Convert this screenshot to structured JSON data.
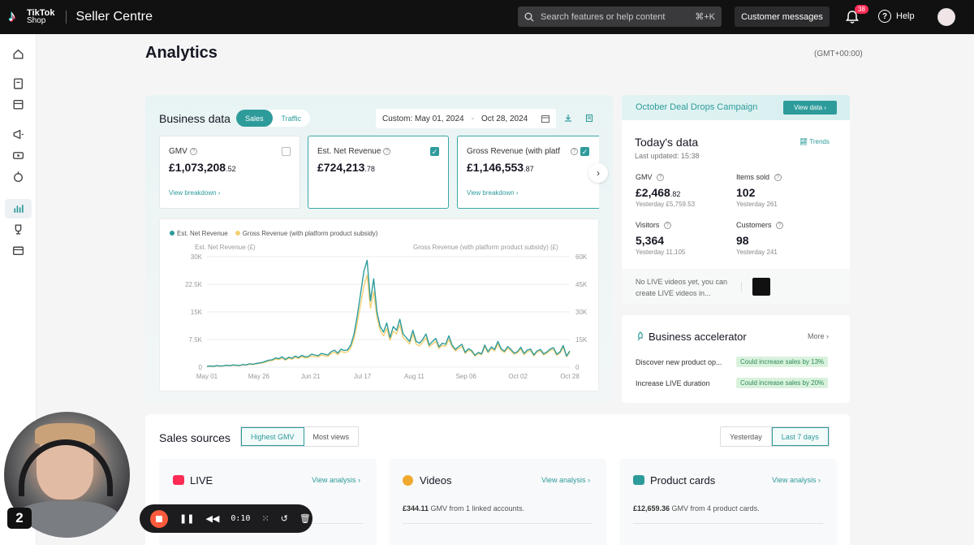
{
  "topbar": {
    "logo_line1": "TikTok",
    "logo_line2": "Shop",
    "brand": "Seller Centre",
    "search_placeholder": "Search features or help content",
    "search_shortcut": "⌘+K",
    "customer_messages": "Customer messages",
    "notification_count": "38",
    "help": "Help"
  },
  "page": {
    "title": "Analytics",
    "timezone": "(GMT+00:00)"
  },
  "business": {
    "title": "Business data",
    "tabs": [
      "Sales",
      "Traffic"
    ],
    "active_tab": "Sales",
    "date_label": "Custom:",
    "date_start": "May 01, 2024",
    "date_sep": "-",
    "date_end": "Oct 28, 2024",
    "metrics": [
      {
        "label": "GMV",
        "main": "£1,073,208",
        "dec": ".52",
        "link": "View breakdown ›",
        "checked": false
      },
      {
        "label": "Est. Net Revenue",
        "main": "£724,213",
        "dec": ".78",
        "link": "",
        "checked": true
      },
      {
        "label": "Gross Revenue (with platf",
        "main": "£1,146,553",
        "dec": ".87",
        "link": "View breakdown ›",
        "checked": true
      }
    ]
  },
  "chart_data": {
    "type": "line",
    "legend": [
      "Est. Net Revenue",
      "Gross Revenue (with platform product subsidy)"
    ],
    "y_left_label": "Est. Net Revenue (£)",
    "y_right_label": "Gross Revenue (with platform product subsidy) (£)",
    "y_left_ticks": [
      "30K",
      "22.5K",
      "15K",
      "7.5K",
      "0"
    ],
    "y_right_ticks": [
      "60K",
      "45K",
      "30K",
      "15K",
      "0"
    ],
    "ylim_left": [
      0,
      30000
    ],
    "ylim_right": [
      0,
      60000
    ],
    "x_ticks": [
      "May 01",
      "May 26",
      "Jun 21",
      "Jul 17",
      "Aug 11",
      "Sep 06",
      "Oct 02",
      "Oct 28"
    ],
    "colors": {
      "net": "#2e9b9b",
      "gross": "#f3d074"
    },
    "series": [
      {
        "name": "Est. Net Revenue",
        "values": [
          200,
          300,
          250,
          400,
          300,
          350,
          500,
          400,
          600,
          500,
          450,
          700,
          600,
          900,
          800,
          1000,
          1100,
          1300,
          1600,
          1900,
          2000,
          2500,
          2300,
          2800,
          2100,
          2700,
          2400,
          3000,
          2600,
          3200,
          2800,
          2900,
          3500,
          3300,
          3100,
          3700,
          3500,
          3300,
          4200,
          4600,
          3800,
          4900,
          4500,
          4700,
          6000,
          9000,
          14000,
          20000,
          26000,
          29000,
          18000,
          24000,
          15000,
          11000,
          9500,
          12000,
          8000,
          11000,
          10000,
          13000,
          9000,
          8000,
          7000,
          10000,
          7000,
          6500,
          7500,
          9000,
          6000,
          7000,
          7800,
          5500,
          6500,
          6200,
          8500,
          6000,
          4800,
          5600,
          6200,
          4000,
          5000,
          4500,
          3200,
          4000,
          3600,
          6000,
          4200,
          5500,
          4800,
          7000,
          5000,
          4300,
          5600,
          4800,
          3800,
          4200,
          5400,
          3700,
          4600,
          4900,
          3300,
          4400,
          4800,
          3600,
          4100,
          4900,
          5300,
          3500,
          4100,
          5900,
          3000,
          4400
        ]
      },
      {
        "name": "Gross Revenue (with platform product subsidy)",
        "values": [
          400,
          500,
          450,
          700,
          550,
          600,
          850,
          700,
          1000,
          900,
          800,
          1200,
          1000,
          1600,
          1400,
          1800,
          2000,
          2300,
          2800,
          3400,
          3600,
          4400,
          4100,
          5000,
          3800,
          4800,
          4300,
          5300,
          4600,
          5700,
          5000,
          5200,
          6100,
          5800,
          5500,
          6500,
          6200,
          5800,
          7400,
          8100,
          6700,
          8600,
          7900,
          8300,
          10500,
          15500,
          24000,
          34000,
          44000,
          50000,
          32000,
          41000,
          27000,
          20000,
          17000,
          21000,
          14500,
          19500,
          18000,
          23000,
          16000,
          14500,
          12500,
          18000,
          12500,
          11500,
          13500,
          16000,
          11000,
          12500,
          14000,
          10000,
          11800,
          11200,
          15000,
          11000,
          8800,
          10200,
          11200,
          7400,
          9200,
          8300,
          6000,
          7400,
          6700,
          11000,
          7800,
          10000,
          8800,
          12500,
          9200,
          8000,
          10200,
          8800,
          7000,
          7800,
          9800,
          6800,
          8400,
          9000,
          6100,
          8100,
          8800,
          6600,
          7600,
          9000,
          9600,
          6400,
          7600,
          10700,
          5600,
          8100
        ]
      }
    ]
  },
  "campaign": {
    "title": "October Deal Drops Campaign",
    "button": "View data ›"
  },
  "today": {
    "title": "Today's data",
    "updated": "Last updated: 15:38",
    "trends": "Trends",
    "items": [
      {
        "label": "GMV",
        "main": "£2,468",
        "dec": ".82",
        "sub": "Yesterday £5,759.53"
      },
      {
        "label": "Items sold",
        "main": "102",
        "dec": "",
        "sub": "Yesterday 261"
      },
      {
        "label": "Visitors",
        "main": "5,364",
        "dec": "",
        "sub": "Yesterday 11,105"
      },
      {
        "label": "Customers",
        "main": "98",
        "dec": "",
        "sub": "Yesterday 241"
      }
    ],
    "live_note": "No LIVE videos yet, you can create LIVE videos in..."
  },
  "accelerator": {
    "title": "Business accelerator",
    "more": "More ›",
    "rows": [
      {
        "text": "Discover new product op...",
        "tag": "Could increase sales by 13%"
      },
      {
        "text": "Increase LIVE duration",
        "tag": "Could increase sales by 20%"
      }
    ]
  },
  "sales_sources": {
    "title": "Sales sources",
    "sort_tabs": [
      "Highest GMV",
      "Most views"
    ],
    "period_tabs": [
      "Yesterday",
      "Last 7 days"
    ],
    "cards": [
      {
        "title": "LIVE",
        "link": "View analysis ›",
        "desc_bold": "",
        "desc": "",
        "color": "#fe2c55"
      },
      {
        "title": "Videos",
        "link": "View analysis ›",
        "desc_bold": "£344.11",
        "desc": " GMV from 1 linked accounts.",
        "color": "#f0a92e"
      },
      {
        "title": "Product cards",
        "link": "View analysis ›",
        "desc_bold": "£12,659.36",
        "desc": " GMV from 4 product cards.",
        "color": "#2e9b9b"
      }
    ]
  },
  "recorder": {
    "step": "2",
    "time": "0:10"
  }
}
